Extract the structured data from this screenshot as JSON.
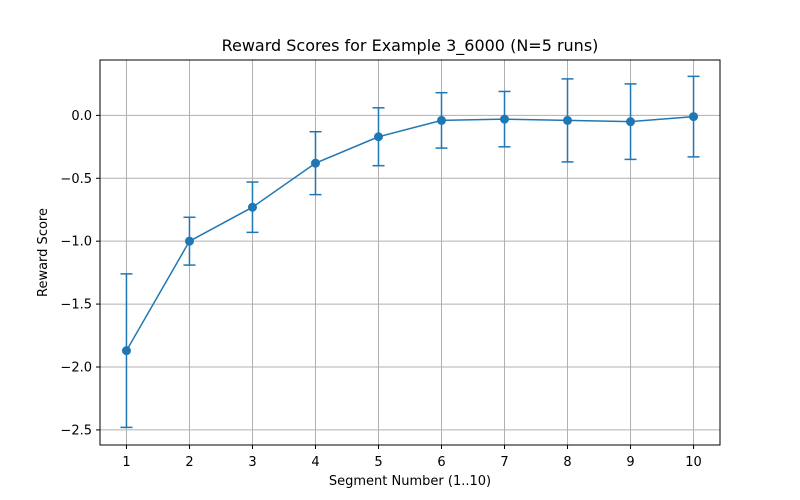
{
  "chart_data": {
    "type": "line",
    "title": "Reward Scores for Example 3_6000 (N=5 runs)",
    "xlabel": "Segment Number (1..10)",
    "ylabel": "Reward Score",
    "x": [
      1,
      2,
      3,
      4,
      5,
      6,
      7,
      8,
      9,
      10
    ],
    "xticks": [
      1,
      2,
      3,
      4,
      5,
      6,
      7,
      8,
      9,
      10
    ],
    "xtick_labels": [
      "1",
      "2",
      "3",
      "4",
      "5",
      "6",
      "7",
      "8",
      "9",
      "10"
    ],
    "yticks": [
      -2.5,
      -2.0,
      -1.5,
      -1.0,
      -0.5,
      0.0
    ],
    "ytick_labels": [
      "−2.5",
      "−2.0",
      "−1.5",
      "−1.0",
      "−0.5",
      "0.0"
    ],
    "xlim": [
      0.58,
      10.42
    ],
    "ylim": [
      -2.62,
      0.44
    ],
    "grid": true,
    "series": [
      {
        "values": [
          -1.87,
          -1.0,
          -0.73,
          -0.38,
          -0.17,
          -0.04,
          -0.03,
          -0.04,
          -0.05,
          -0.01
        ],
        "error": [
          0.61,
          0.19,
          0.2,
          0.25,
          0.23,
          0.22,
          0.22,
          0.33,
          0.3,
          0.32
        ],
        "color": "#1f77b4"
      }
    ]
  }
}
